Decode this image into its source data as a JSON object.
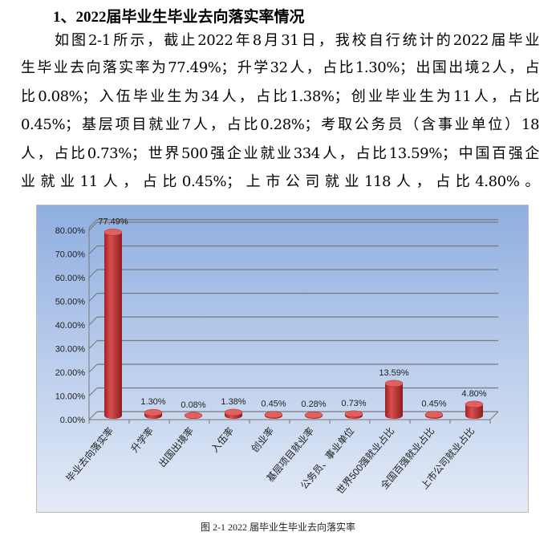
{
  "heading": "1、2022届毕业生毕业去向落实率情况",
  "paragraph_lines": [
    "　　如图2-1所示，截止2022年8月31日，我校自行统计的2022届毕业",
    "生毕业去向落实率为77.49%；升学32人，占比1.30%；出国出境2人，占",
    "比0.08%；入伍毕业生为34人，占比1.38%；创业毕业生为11人，占比",
    "0.45%；基层项目就业7人，占比0.28%；考取公务员（含事业单位）18",
    "人，占比0.73%；世界500强企业就业334人，占比13.59%；中国百强企",
    "业就业11人，占比0.45%；上市公司就业118人，占比4.80%。"
  ],
  "caption": "图 2-1 2022 届毕业生毕业去向落实率",
  "chart_data": {
    "type": "bar",
    "style": "3d-cylinder",
    "categories": [
      "毕业去向落实率",
      "升学率",
      "出国出境率",
      "入伍率",
      "创业率",
      "基层项目就业率",
      "公务员、事业单位",
      "世界500强就业占比",
      "全国百强就业占比",
      "上市公司就业占比"
    ],
    "values": [
      77.49,
      1.3,
      0.08,
      1.38,
      0.45,
      0.28,
      0.73,
      13.59,
      0.45,
      4.8
    ],
    "data_labels": [
      "77.49%",
      "1.30%",
      "0.08%",
      "1.38%",
      "0.45%",
      "0.28%",
      "0.73%",
      "13.59%",
      "0.45%",
      "4.80%"
    ],
    "ytick_labels": [
      "0.00%",
      "10.00%",
      "20.00%",
      "30.00%",
      "40.00%",
      "50.00%",
      "60.00%",
      "70.00%",
      "80.00%"
    ],
    "ylim": [
      0,
      80
    ],
    "grid": true,
    "bar_color": "#c0393b",
    "background": "#9db6e3"
  }
}
